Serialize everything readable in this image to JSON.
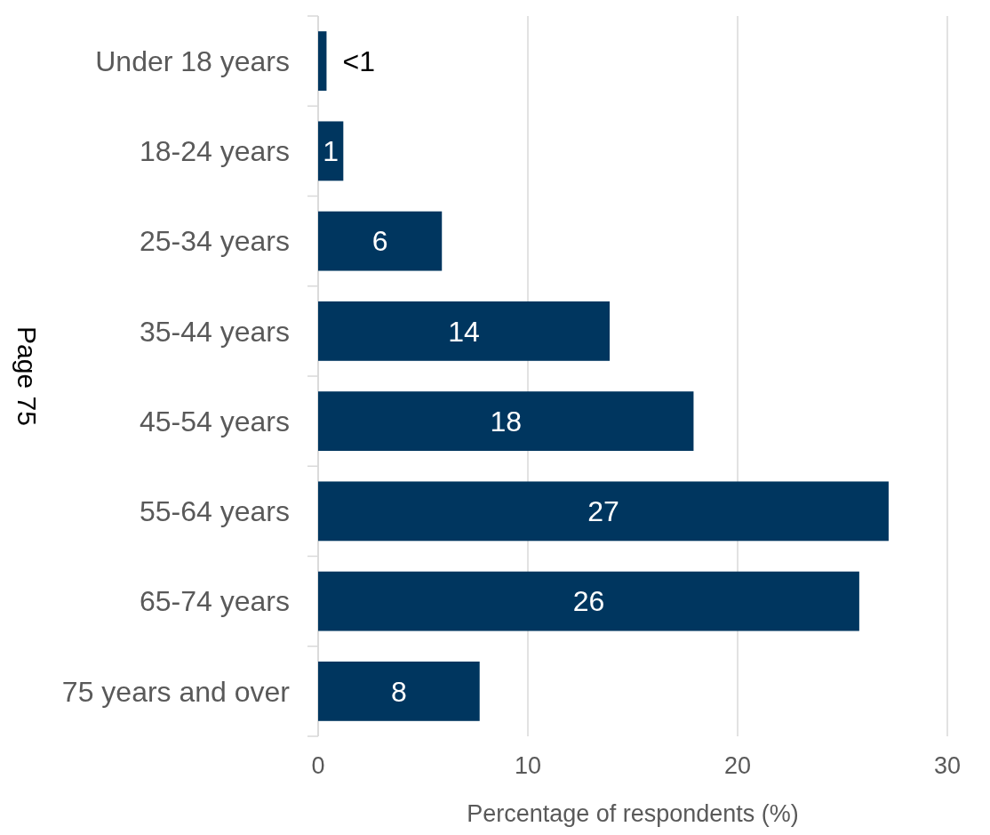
{
  "chart_data": {
    "type": "bar",
    "orientation": "horizontal",
    "xlabel": "Percentage of respondents (%)",
    "categories": [
      "Under 18 years",
      "18-24 years",
      "25-34 years",
      "35-44 years",
      "45-54 years",
      "55-64 years",
      "65-74 years",
      "75 years and over"
    ],
    "values": [
      0.4,
      1.2,
      5.9,
      13.9,
      17.9,
      27.2,
      25.8,
      7.7
    ],
    "value_labels": [
      "<1",
      "1",
      "6",
      "14",
      "18",
      "27",
      "26",
      "8"
    ],
    "color": "#00365f",
    "xlim": [
      0,
      30
    ],
    "xticks": [
      0,
      10,
      20,
      30
    ],
    "grid": "x",
    "annotations": [
      "Page 75"
    ]
  }
}
